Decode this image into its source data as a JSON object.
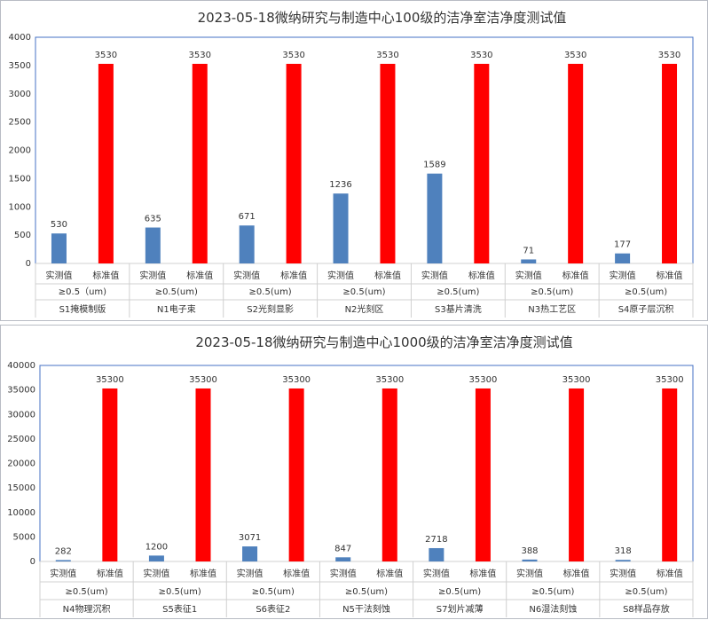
{
  "colors": {
    "actual": "#4f81bd",
    "standard": "#ff0000",
    "plot_border": "#4472c4",
    "axis": "#d0d0d0"
  },
  "chart_data": [
    {
      "type": "bar",
      "title": "2023-05-18微纳研究与制造中心100级的洁净室洁净度测试值",
      "ylim": [
        0,
        4000
      ],
      "yticks": [
        0,
        500,
        1000,
        1500,
        2000,
        2500,
        3000,
        3500,
        4000
      ],
      "groups": [
        {
          "name": "S1掩模制版",
          "sub": "≥0.5（um)",
          "actual_label": "实测值",
          "standard_label": "标准值",
          "actual": 530,
          "standard": 3530
        },
        {
          "name": "N1电子束",
          "sub": "≥0.5(um)",
          "actual_label": "实测值",
          "standard_label": "标准值",
          "actual": 635,
          "standard": 3530
        },
        {
          "name": "S2光刻显影",
          "sub": "≥0.5(um)",
          "actual_label": "实测值",
          "standard_label": "标准值",
          "actual": 671,
          "standard": 3530
        },
        {
          "name": "N2光刻区",
          "sub": "≥0.5(um)",
          "actual_label": "实测值",
          "standard_label": "标准值",
          "actual": 1236,
          "standard": 3530
        },
        {
          "name": "S3基片清洗",
          "sub": "≥0.5(um)",
          "actual_label": "实测值",
          "standard_label": "标准值",
          "actual": 1589,
          "standard": 3530
        },
        {
          "name": "N3热工艺区",
          "sub": "≥0.5(um)",
          "actual_label": "实测值",
          "standard_label": "标准值",
          "actual": 71,
          "standard": 3530
        },
        {
          "name": "S4原子层沉积",
          "sub": "≥0.5(um)",
          "actual_label": "实测值",
          "standard_label": "标准值",
          "actual": 177,
          "standard": 3530
        }
      ]
    },
    {
      "type": "bar",
      "title": "2023-05-18微纳研究与制造中心1000级的洁净室洁净度测试值",
      "ylim": [
        0,
        40000
      ],
      "yticks": [
        0,
        5000,
        10000,
        15000,
        20000,
        25000,
        30000,
        35000,
        40000
      ],
      "groups": [
        {
          "name": "N4物理沉积",
          "sub": "≥0.5(um)",
          "actual_label": "实测值",
          "standard_label": "标准值",
          "actual": 282,
          "standard": 35300
        },
        {
          "name": "S5表征1",
          "sub": "≥0.5(um)",
          "actual_label": "实测值",
          "standard_label": "标准值",
          "actual": 1200,
          "standard": 35300
        },
        {
          "name": "S6表征2",
          "sub": "≥0.5(um)",
          "actual_label": "实测值",
          "standard_label": "标准值",
          "actual": 3071,
          "standard": 35300
        },
        {
          "name": "N5干法刻蚀",
          "sub": "≥0.5(um)",
          "actual_label": "实测值",
          "standard_label": "标准值",
          "actual": 847,
          "standard": 35300
        },
        {
          "name": "S7划片减薄",
          "sub": "≥0.5(um)",
          "actual_label": "实测值",
          "standard_label": "标准值",
          "actual": 2718,
          "standard": 35300
        },
        {
          "name": "N6湿法刻蚀",
          "sub": "≥0.5(um)",
          "actual_label": "实测值",
          "standard_label": "标准值",
          "actual": 388,
          "standard": 35300
        },
        {
          "name": "S8样品存放",
          "sub": "≥0.5(um)",
          "actual_label": "实测值",
          "standard_label": "标准值",
          "actual": 318,
          "standard": 35300
        }
      ]
    }
  ]
}
